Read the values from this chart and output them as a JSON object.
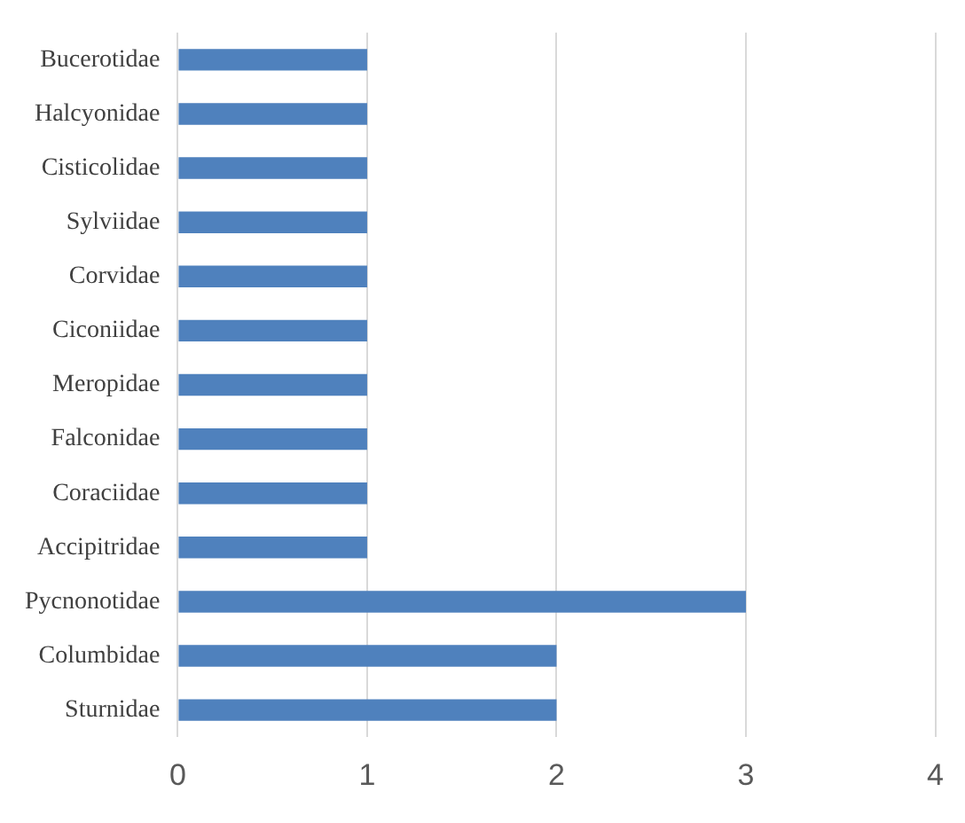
{
  "chart_data": {
    "type": "bar",
    "orientation": "horizontal",
    "categories": [
      "Bucerotidae",
      "Halcyonidae",
      "Cisticolidae",
      "Sylviidae",
      "Corvidae",
      "Ciconiidae",
      "Meropidae",
      "Falconidae",
      "Coraciidae",
      "Accipitridae",
      "Pycnonotidae",
      "Columbidae",
      "Sturnidae"
    ],
    "values": [
      1,
      1,
      1,
      1,
      1,
      1,
      1,
      1,
      1,
      1,
      3,
      2,
      2
    ],
    "color": "#4f81bd",
    "xlim": [
      0,
      4
    ],
    "xticks": [
      0,
      1,
      2,
      3,
      4
    ],
    "grid": "x",
    "legend": false
  }
}
